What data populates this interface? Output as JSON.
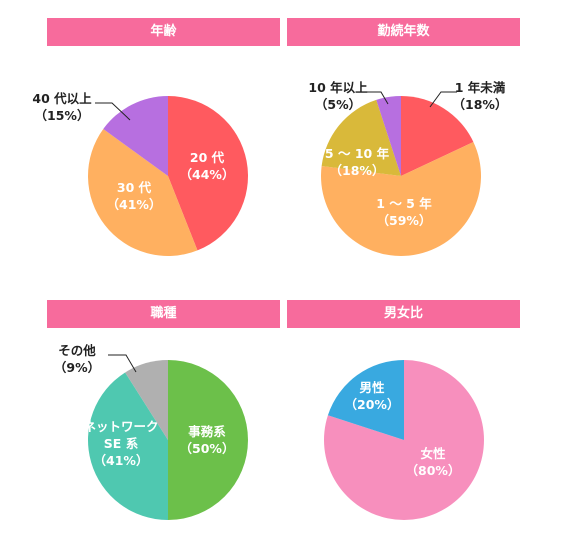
{
  "charts": [
    {
      "header": "年齢",
      "chart_type": "pie",
      "slices": [
        {
          "name": "20 代",
          "pct_label": "（44%）",
          "value": 44,
          "color": "#ff5a5f",
          "label_color": "#ffffff"
        },
        {
          "name": "30 代",
          "pct_label": "（41%）",
          "value": 41,
          "color": "#ffb060",
          "label_color": "#ffffff"
        },
        {
          "name": "40 代以上",
          "pct_label": "（15%）",
          "value": 15,
          "color": "#b76fe0",
          "label_color": "#222222"
        }
      ]
    },
    {
      "header": "勤続年数",
      "chart_type": "pie",
      "slices": [
        {
          "name": "1 年未満",
          "pct_label": "（18%）",
          "value": 18,
          "color": "#ff5a5f",
          "label_color": "#222222"
        },
        {
          "name": "1 ～ 5 年",
          "pct_label": "（59%）",
          "value": 59,
          "color": "#ffb060",
          "label_color": "#ffffff"
        },
        {
          "name": "5 ～ 10 年",
          "pct_label": "（18%）",
          "value": 18,
          "color": "#d9b93a",
          "label_color": "#ffffff"
        },
        {
          "name": "10 年以上",
          "pct_label": "（5%）",
          "value": 5,
          "color": "#b76fe0",
          "label_color": "#222222"
        }
      ]
    },
    {
      "header": "職種",
      "chart_type": "pie",
      "slices": [
        {
          "name": "事務系",
          "pct_label": "（50%）",
          "value": 50,
          "color": "#6cc04a",
          "label_color": "#ffffff"
        },
        {
          "name": "ネットワーク\nSE 系",
          "pct_label": "（41%）",
          "value": 41,
          "color": "#4fc8b0",
          "label_color": "#ffffff"
        },
        {
          "name": "その他",
          "pct_label": "（9%）",
          "value": 9,
          "color": "#b0b0b0",
          "label_color": "#222222"
        }
      ]
    },
    {
      "header": "男女比",
      "chart_type": "pie",
      "slices": [
        {
          "name": "女性",
          "pct_label": "（80%）",
          "value": 80,
          "color": "#f78fbd",
          "label_color": "#ffffff"
        },
        {
          "name": "男性",
          "pct_label": "（20%）",
          "value": 20,
          "color": "#39a9e0",
          "label_color": "#ffffff"
        }
      ]
    }
  ],
  "colors": {
    "header_bg": "#f76b9c",
    "header_text": "#ffffff",
    "leader_line": "#222222"
  }
}
